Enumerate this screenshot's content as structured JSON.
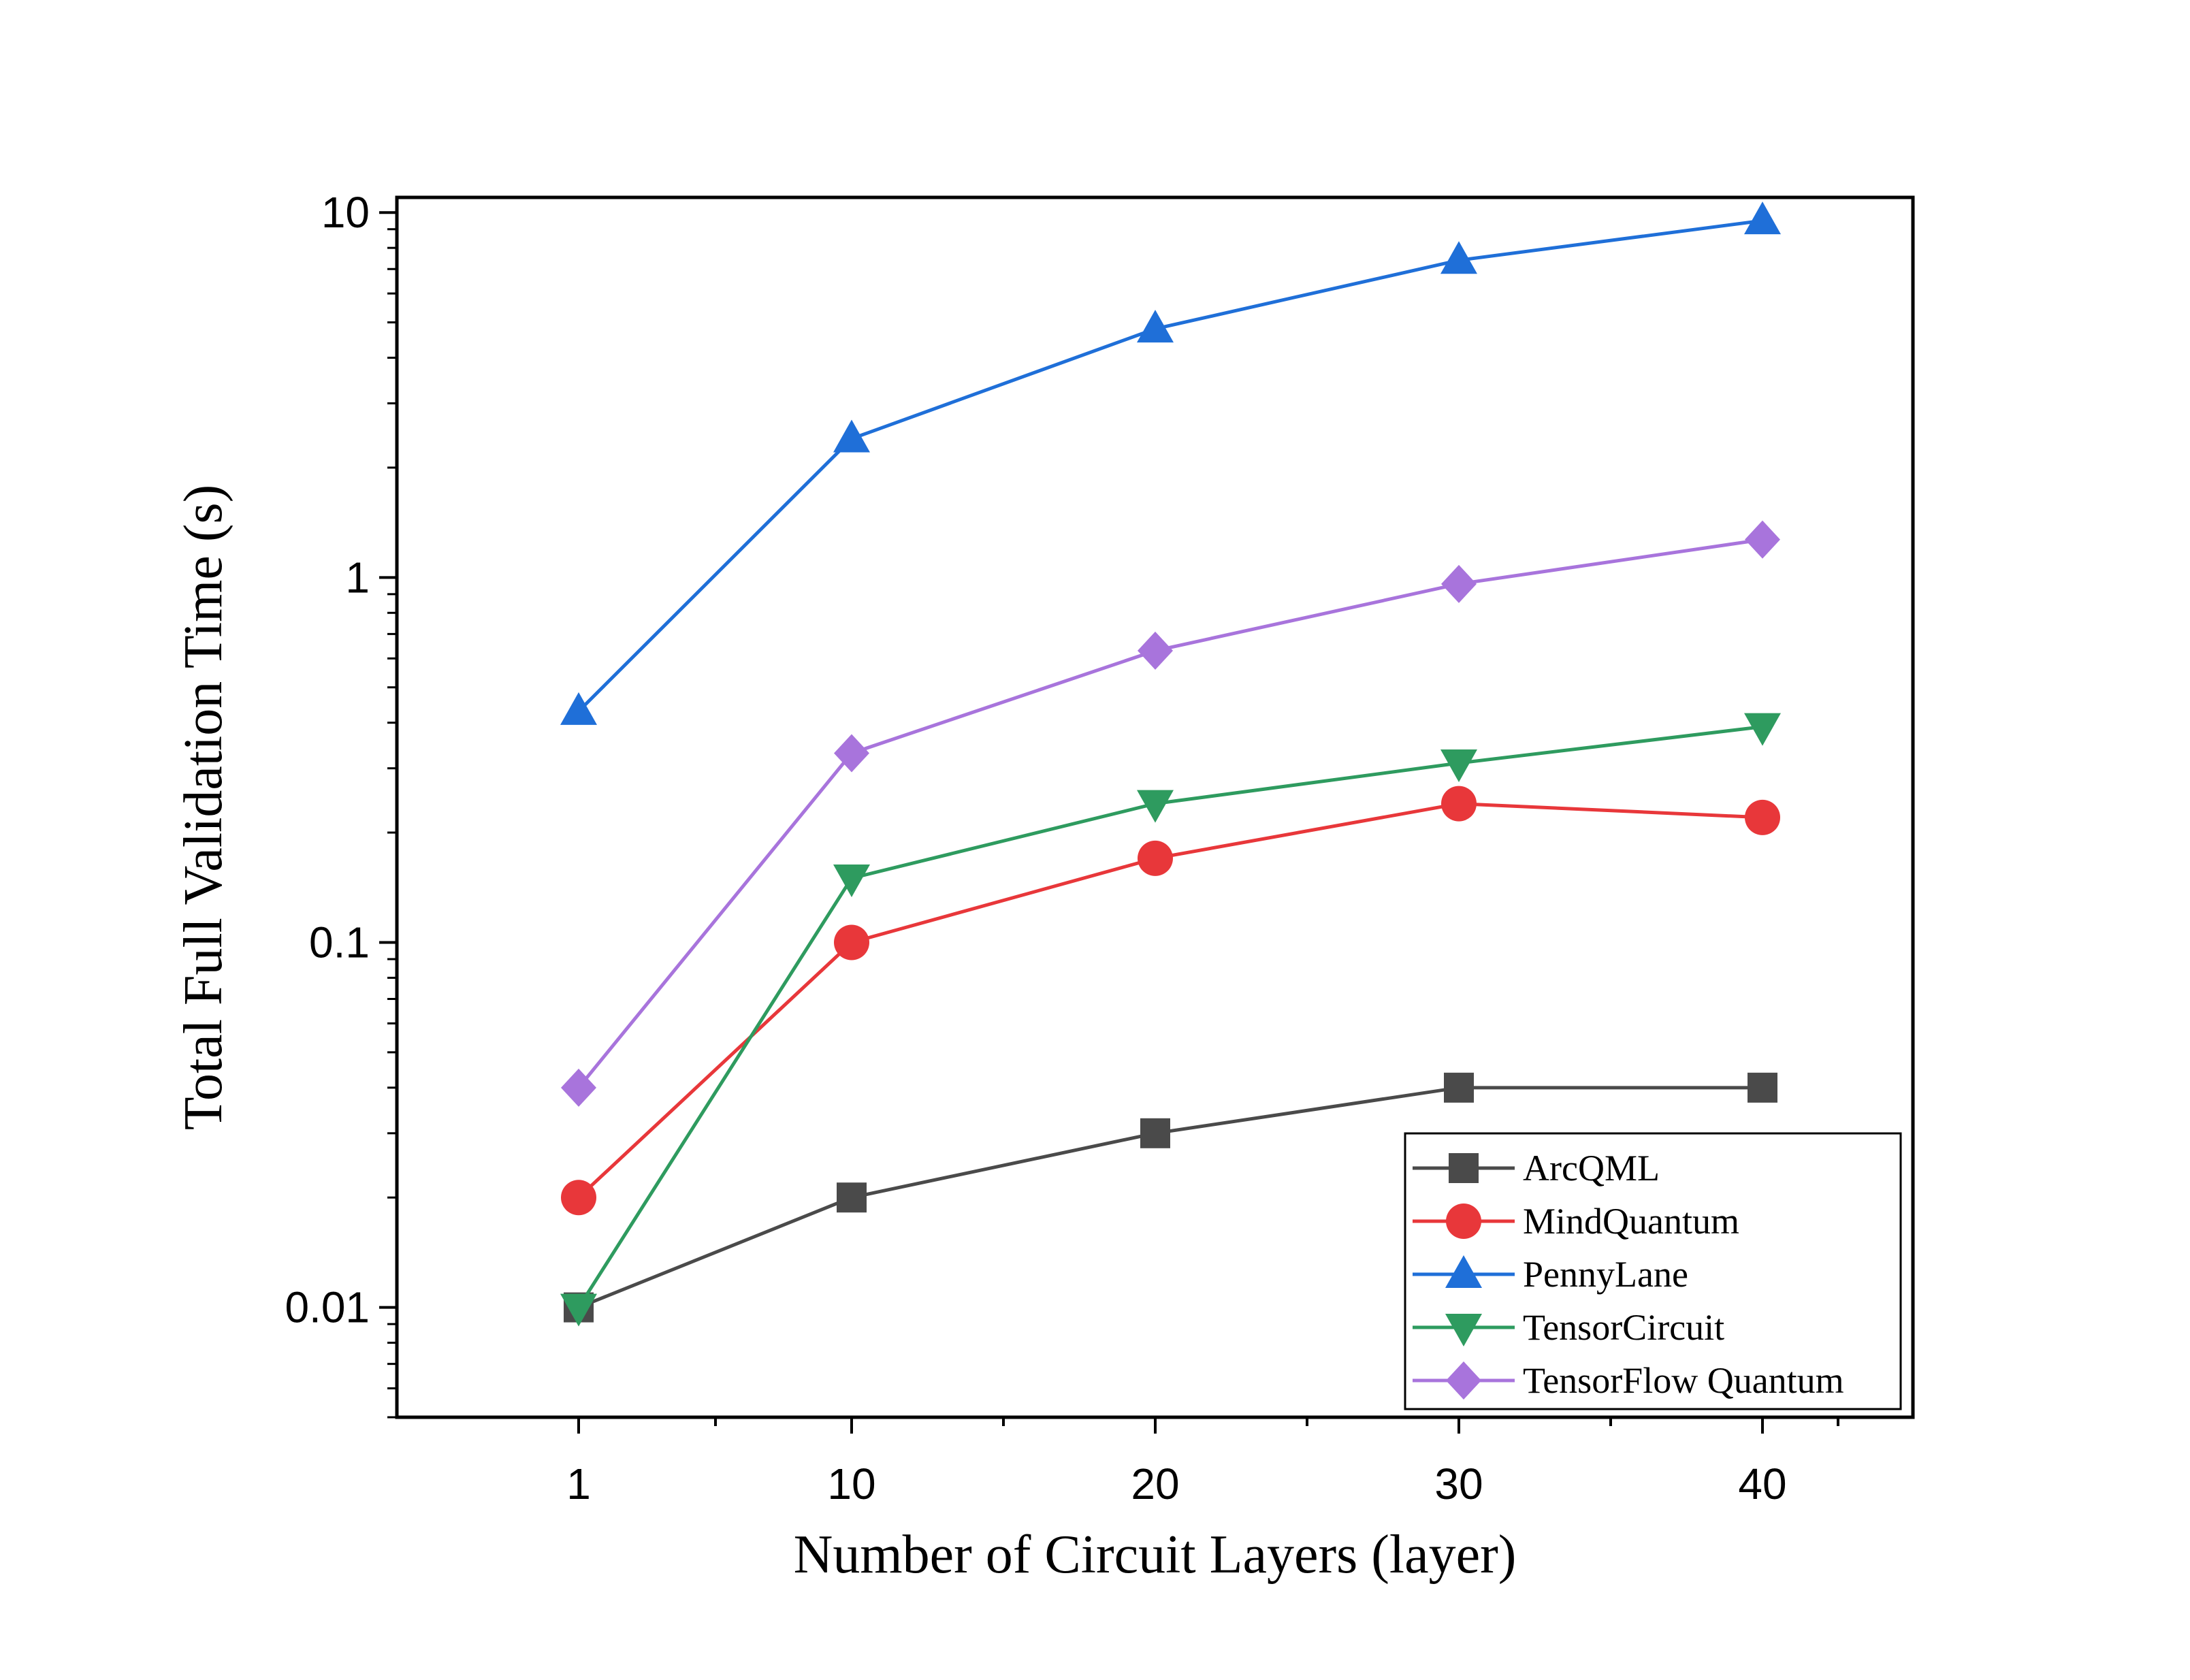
{
  "chart_data": {
    "type": "line",
    "title": "",
    "xlabel": "Number of Circuit Layers (layer)",
    "ylabel": "Total Full Validation Time (s)",
    "x_scale": "categorical",
    "y_scale": "log",
    "ylim": [
      0.005,
      11
    ],
    "grid": false,
    "legend_position": "bottom-right",
    "categories": [
      "1",
      "10",
      "20",
      "30",
      "40"
    ],
    "y_ticks": [
      {
        "value": 0.01,
        "label": "0.01"
      },
      {
        "value": 0.1,
        "label": "0.1"
      },
      {
        "value": 1,
        "label": "1"
      },
      {
        "value": 10,
        "label": "10"
      }
    ],
    "series": [
      {
        "name": "ArcQML",
        "color": "#4a4a4a",
        "marker": "square",
        "values": [
          0.01,
          0.02,
          0.03,
          0.04,
          0.04
        ]
      },
      {
        "name": "MindQuantum",
        "color": "#e8373a",
        "marker": "circle",
        "values": [
          0.02,
          0.1,
          0.17,
          0.24,
          0.22
        ]
      },
      {
        "name": "PennyLane",
        "color": "#1f6fd8",
        "marker": "triangle-up",
        "values": [
          0.43,
          2.4,
          4.8,
          7.4,
          9.5
        ]
      },
      {
        "name": "TensorCircuit",
        "color": "#2e9b5f",
        "marker": "triangle-down",
        "values": [
          0.01,
          0.15,
          0.24,
          0.31,
          0.39
        ]
      },
      {
        "name": "TensorFlow Quantum",
        "color": "#a874dc",
        "marker": "diamond",
        "values": [
          0.04,
          0.33,
          0.63,
          0.96,
          1.27
        ]
      }
    ]
  }
}
